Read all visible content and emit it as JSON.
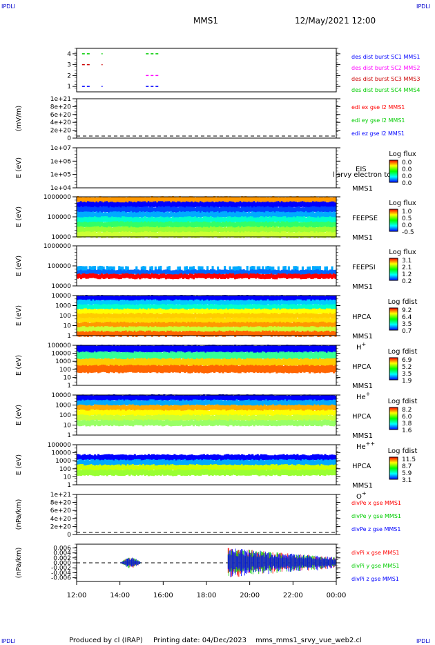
{
  "header": {
    "corner_label": "IPDLI",
    "spacecraft": "MMS1",
    "datetime": "12/May/2021 12:00"
  },
  "footer": {
    "produced_by": "Produced by cl (IRAP)",
    "printing_date": "Printing date: 04/Dec/2023",
    "script_name": "mms_mms1_srvy_vue_web2.cl"
  },
  "colors": {
    "sc1": "#0000ff",
    "sc2": "#ff00ff",
    "sc3": "#cc0000",
    "sc4": "#00cc00",
    "x_component": "#ff0000",
    "y_component": "#00cc00",
    "z_component": "#0000ff"
  },
  "chart_data": [
    {
      "id": "burst",
      "type": "scatter",
      "ylim": [
        0.5,
        4.5
      ],
      "yticks": [
        "1",
        "2",
        "3",
        "4"
      ],
      "legend": [
        "des dist burst SC1 MMS1",
        "des dist burst SC2 MMS2",
        "des dist burst SC3 MMS3",
        "des dist burst SC4 MMS4"
      ],
      "series": [
        {
          "name": "des dist burst SC1 MMS1",
          "y": 1,
          "intervals_hours": [
            [
              12.25,
              12.65
            ],
            [
              13.15,
              13.2
            ],
            [
              15.2,
              15.85
            ]
          ]
        },
        {
          "name": "des dist burst SC2 MMS2",
          "y": 2,
          "intervals_hours": [
            [
              15.2,
              15.85
            ]
          ]
        },
        {
          "name": "des dist burst SC3 MMS3",
          "y": 3,
          "intervals_hours": [
            [
              12.25,
              12.65
            ],
            [
              13.15,
              13.2
            ]
          ]
        },
        {
          "name": "des dist burst SC4 MMS4",
          "y": 4,
          "intervals_hours": [
            [
              12.25,
              12.65
            ],
            [
              13.15,
              13.2
            ],
            [
              15.2,
              15.85
            ]
          ]
        }
      ]
    },
    {
      "id": "edi_e",
      "type": "line",
      "ylabel": "(mV/m)",
      "ylim": [
        0,
        1e+21
      ],
      "yticks": [
        "1e+21",
        "8e+20",
        "6e+20",
        "4e+20",
        "2e+20",
        "0"
      ],
      "legend": [
        "edi ex gse l2 MMS1",
        "edi ey gse l2 MMS1",
        "edi ez gse l2 MMS1"
      ],
      "zero_line": true
    },
    {
      "id": "eis",
      "type": "heatmap",
      "ylabel": "E (eV)",
      "yticks": [
        "1e+07",
        "1e+06",
        "1e+05",
        "1e+04"
      ],
      "instrument": "EIS",
      "overlay_label": "l srvy electron to",
      "spacecraft": "MMS1",
      "colorbar_title": "Log flux",
      "colorbar_ticks": [
        "0.0",
        "0.0",
        "0.0",
        "0.0"
      ]
    },
    {
      "id": "feepse",
      "type": "heatmap",
      "ylabel": "E (eV)",
      "yticks": [
        "1000000",
        "100000",
        "10000"
      ],
      "instrument": "FEEPSE",
      "spacecraft": "MMS1",
      "colorbar_title": "Log flux",
      "colorbar_ticks": [
        "1.0",
        "0.5",
        "0.0",
        "-0.5"
      ]
    },
    {
      "id": "feepsi",
      "type": "heatmap",
      "ylabel": "E (eV)",
      "yticks": [
        "1000000",
        "100000",
        "10000"
      ],
      "instrument": "FEEPSI",
      "spacecraft": "MMS1",
      "colorbar_title": "Log flux",
      "colorbar_ticks": [
        "3.1",
        "2.1",
        "1.2",
        "0.2"
      ]
    },
    {
      "id": "hpca_h",
      "type": "heatmap",
      "ylabel": "E (eV)",
      "yticks": [
        "10000",
        "1000",
        "100",
        "10",
        "1"
      ],
      "instrument": "HPCA",
      "spacecraft": "MMS1",
      "species": "H",
      "species_charge": "+",
      "colorbar_title": "Log fdist",
      "colorbar_ticks": [
        "9.2",
        "6.4",
        "3.5",
        "0.7"
      ]
    },
    {
      "id": "hpca_he1",
      "type": "heatmap",
      "ylabel": "E (eV)",
      "yticks": [
        "100000",
        "10000",
        "1000",
        "100",
        "10",
        "1"
      ],
      "instrument": "HPCA",
      "spacecraft": "MMS1",
      "species": "He",
      "species_charge": "+",
      "colorbar_title": "Log fdist",
      "colorbar_ticks": [
        "6.9",
        "5.2",
        "3.5",
        "1.9"
      ]
    },
    {
      "id": "hpca_he2",
      "type": "heatmap",
      "ylabel": "E (eV)",
      "yticks": [
        "10000",
        "1000",
        "100",
        "10",
        "1"
      ],
      "instrument": "HPCA",
      "spacecraft": "MMS1",
      "species": "He",
      "species_charge": "++",
      "colorbar_title": "Log fdist",
      "colorbar_ticks": [
        "8.2",
        "6.0",
        "3.8",
        "1.6"
      ]
    },
    {
      "id": "hpca_o",
      "type": "heatmap",
      "ylabel": "E (eV)",
      "yticks": [
        "100000",
        "10000",
        "1000",
        "100",
        "10",
        "1"
      ],
      "instrument": "HPCA",
      "spacecraft": "MMS1",
      "species": "O",
      "species_charge": "+",
      "colorbar_title": "Log fdist",
      "colorbar_ticks": [
        "11.5",
        "8.7",
        "5.9",
        "3.1"
      ]
    },
    {
      "id": "divpe",
      "type": "line",
      "ylabel": "(nPa/km)",
      "ylim": [
        0,
        1e+21
      ],
      "yticks": [
        "1e+21",
        "8e+20",
        "6e+20",
        "4e+20",
        "2e+20",
        "0"
      ],
      "legend": [
        "divPe x gse MMS1",
        "divPe y gse MMS1",
        "divPe z gse MMS1"
      ],
      "zero_line": true
    },
    {
      "id": "divpi",
      "type": "line",
      "ylabel": "(nPa/km)",
      "ylim": [
        -0.0075,
        0.0075
      ],
      "yticks": [
        "0.006",
        "0.004",
        "0.002",
        "0.000",
        "-0.002",
        "-0.004",
        "-0.006"
      ],
      "legend": [
        "divPi x gse MMS1",
        "divPi y gse MMS1",
        "divPi z gse MMS1"
      ],
      "zero_line": true,
      "active_intervals_hours": [
        [
          14.0,
          15.0
        ],
        [
          19.0,
          24.0
        ]
      ]
    }
  ],
  "x_axis": {
    "xlim_hours": [
      12,
      24
    ],
    "tick_labels": [
      "12:00",
      "14:00",
      "16:00",
      "18:00",
      "20:00",
      "22:00",
      "00:00"
    ]
  }
}
